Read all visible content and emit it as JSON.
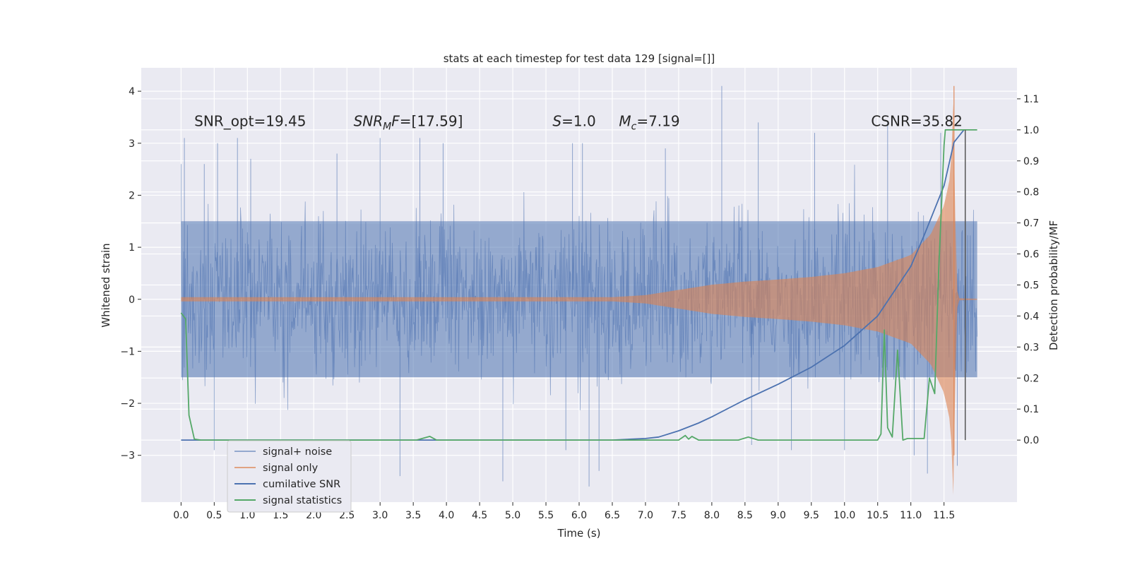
{
  "chart_data": {
    "type": "line",
    "title": "stats at each timestep for test data 129 [signal=[]]",
    "xlabel": "Time (s)",
    "ylabel": "Whitened strain",
    "y2label": "Detection probability/MF",
    "xlim": [
      -0.6,
      12.6
    ],
    "ylim": [
      -3.9,
      4.45
    ],
    "y2lim": [
      -0.2,
      1.2
    ],
    "xticks": [
      0.0,
      0.5,
      1.0,
      1.5,
      2.0,
      2.5,
      3.0,
      3.5,
      4.0,
      4.5,
      5.0,
      5.5,
      6.0,
      6.5,
      7.0,
      7.5,
      8.0,
      8.5,
      9.0,
      9.5,
      10.0,
      10.5,
      11.0,
      11.5
    ],
    "xtick_labels": [
      "0.0",
      "0.5",
      "1.0",
      "1.5",
      "2.0",
      "2.5",
      "3.0",
      "3.5",
      "4.0",
      "4.5",
      "5.0",
      "5.5",
      "6.0",
      "6.5",
      "7.0",
      "7.5",
      "8.0",
      "8.5",
      "9.0",
      "9.5",
      "10.0",
      "10.5",
      "11.0",
      "11.5"
    ],
    "yticks": [
      -3,
      -2,
      -1,
      0,
      1,
      2,
      3,
      4
    ],
    "ytick_labels": [
      "−3",
      "−2",
      "−1",
      "0",
      "1",
      "2",
      "3",
      "4"
    ],
    "y2ticks": [
      0.0,
      0.1,
      0.2,
      0.3,
      0.4,
      0.5,
      0.6,
      0.7,
      0.8,
      0.9,
      1.0,
      1.1
    ],
    "y2tick_labels": [
      "0.0",
      "0.1",
      "0.2",
      "0.3",
      "0.4",
      "0.5",
      "0.6",
      "0.7",
      "0.8",
      "0.9",
      "1.0",
      "1.1"
    ],
    "grid": true,
    "legend_position": "lower-left",
    "annotations": [
      {
        "text": "SNR_opt=19.45",
        "x": 0.2,
        "y": 3.33
      },
      {
        "text": "SNR_MF=[17.59]",
        "x": 2.6,
        "y": 3.33,
        "display": "mf"
      },
      {
        "text": "S=1.0",
        "x": 5.6,
        "y": 3.33,
        "display": "s"
      },
      {
        "text": "M_c=7.19",
        "x": 6.6,
        "y": 3.33,
        "display": "mc"
      },
      {
        "text": "CSNR=35.82",
        "x": 10.4,
        "y": 3.33
      }
    ],
    "vertical_line": {
      "x": 11.82,
      "y2_range": [
        0.0,
        1.0
      ],
      "color": "#555555"
    },
    "series": [
      {
        "name": "signal+ noise",
        "axis": "left",
        "color": "#4c72b0",
        "style": "noise-band",
        "x_range": [
          0.0,
          12.0
        ],
        "typical_envelope": 1.5,
        "extreme_peaks": [
          [
            0.05,
            3.1
          ],
          [
            0.35,
            2.6
          ],
          [
            0.55,
            3.0
          ],
          [
            0.85,
            3.1
          ],
          [
            1.05,
            2.7
          ],
          [
            2.35,
            2.8
          ],
          [
            3.0,
            3.1
          ],
          [
            3.6,
            3.1
          ],
          [
            3.95,
            3.0
          ],
          [
            5.9,
            3.0
          ],
          [
            6.05,
            3.0
          ],
          [
            7.3,
            2.9
          ],
          [
            8.15,
            4.1
          ],
          [
            8.7,
            3.4
          ],
          [
            9.55,
            3.2
          ],
          [
            10.65,
            3.4
          ],
          [
            11.45,
            3.2
          ],
          [
            0.5,
            -2.9
          ],
          [
            3.3,
            -3.4
          ],
          [
            4.85,
            -3.5
          ],
          [
            5.8,
            -2.9
          ],
          [
            6.15,
            -3.6
          ],
          [
            6.3,
            -3.3
          ],
          [
            8.6,
            -2.8
          ],
          [
            9.2,
            -2.9
          ],
          [
            10.0,
            -2.9
          ],
          [
            11.05,
            -3.0
          ],
          [
            11.25,
            -3.35
          ],
          [
            11.7,
            -3.2
          ]
        ]
      },
      {
        "name": "signal only",
        "axis": "left",
        "color": "#dd8452",
        "style": "chirp",
        "envelope": [
          [
            0.0,
            0.04
          ],
          [
            6.5,
            0.04
          ],
          [
            7.0,
            0.08
          ],
          [
            7.5,
            0.18
          ],
          [
            8.0,
            0.28
          ],
          [
            8.5,
            0.34
          ],
          [
            9.0,
            0.38
          ],
          [
            9.5,
            0.43
          ],
          [
            10.0,
            0.5
          ],
          [
            10.5,
            0.62
          ],
          [
            11.0,
            0.85
          ],
          [
            11.3,
            1.25
          ],
          [
            11.5,
            1.8
          ],
          [
            11.6,
            2.4
          ],
          [
            11.65,
            4.1
          ],
          [
            11.68,
            0.3
          ],
          [
            11.72,
            0.02
          ],
          [
            12.0,
            0.01
          ]
        ]
      },
      {
        "name": "cumilative SNR",
        "axis": "right",
        "color": "#4c72b0",
        "x": [
          0.0,
          6.5,
          7.0,
          7.2,
          7.5,
          7.8,
          8.0,
          8.5,
          9.0,
          9.5,
          10.0,
          10.5,
          11.0,
          11.2,
          11.5,
          11.65,
          11.8
        ],
        "y": [
          0.0,
          0.0,
          0.005,
          0.01,
          0.03,
          0.055,
          0.075,
          0.13,
          0.18,
          0.235,
          0.305,
          0.4,
          0.56,
          0.66,
          0.82,
          0.96,
          1.0
        ]
      },
      {
        "name": "signal statistics",
        "axis": "right",
        "color": "#55a868",
        "x": [
          0.0,
          0.07,
          0.12,
          0.2,
          0.3,
          1.0,
          2.0,
          3.0,
          3.55,
          3.75,
          3.85,
          4.5,
          6.0,
          7.0,
          7.5,
          7.6,
          7.65,
          7.7,
          7.8,
          8.0,
          8.4,
          8.55,
          8.7,
          9.5,
          10.2,
          10.5,
          10.55,
          10.6,
          10.65,
          10.72,
          10.8,
          10.88,
          10.95,
          11.05,
          11.2,
          11.28,
          11.36,
          11.42,
          11.5,
          11.52,
          11.6,
          11.75,
          12.0
        ],
        "y": [
          0.41,
          0.39,
          0.08,
          0.003,
          0.0,
          0.0,
          0.0,
          0.0,
          0.0,
          0.012,
          0.0,
          0.0,
          0.0,
          0.0,
          0.0,
          0.015,
          0.003,
          0.012,
          0.0,
          0.0,
          0.0,
          0.01,
          0.0,
          0.0,
          0.0,
          0.0,
          0.02,
          0.355,
          0.04,
          0.01,
          0.29,
          0.0,
          0.005,
          0.005,
          0.005,
          0.2,
          0.15,
          0.55,
          0.95,
          1.0,
          1.0,
          1.0,
          1.0
        ]
      }
    ]
  }
}
